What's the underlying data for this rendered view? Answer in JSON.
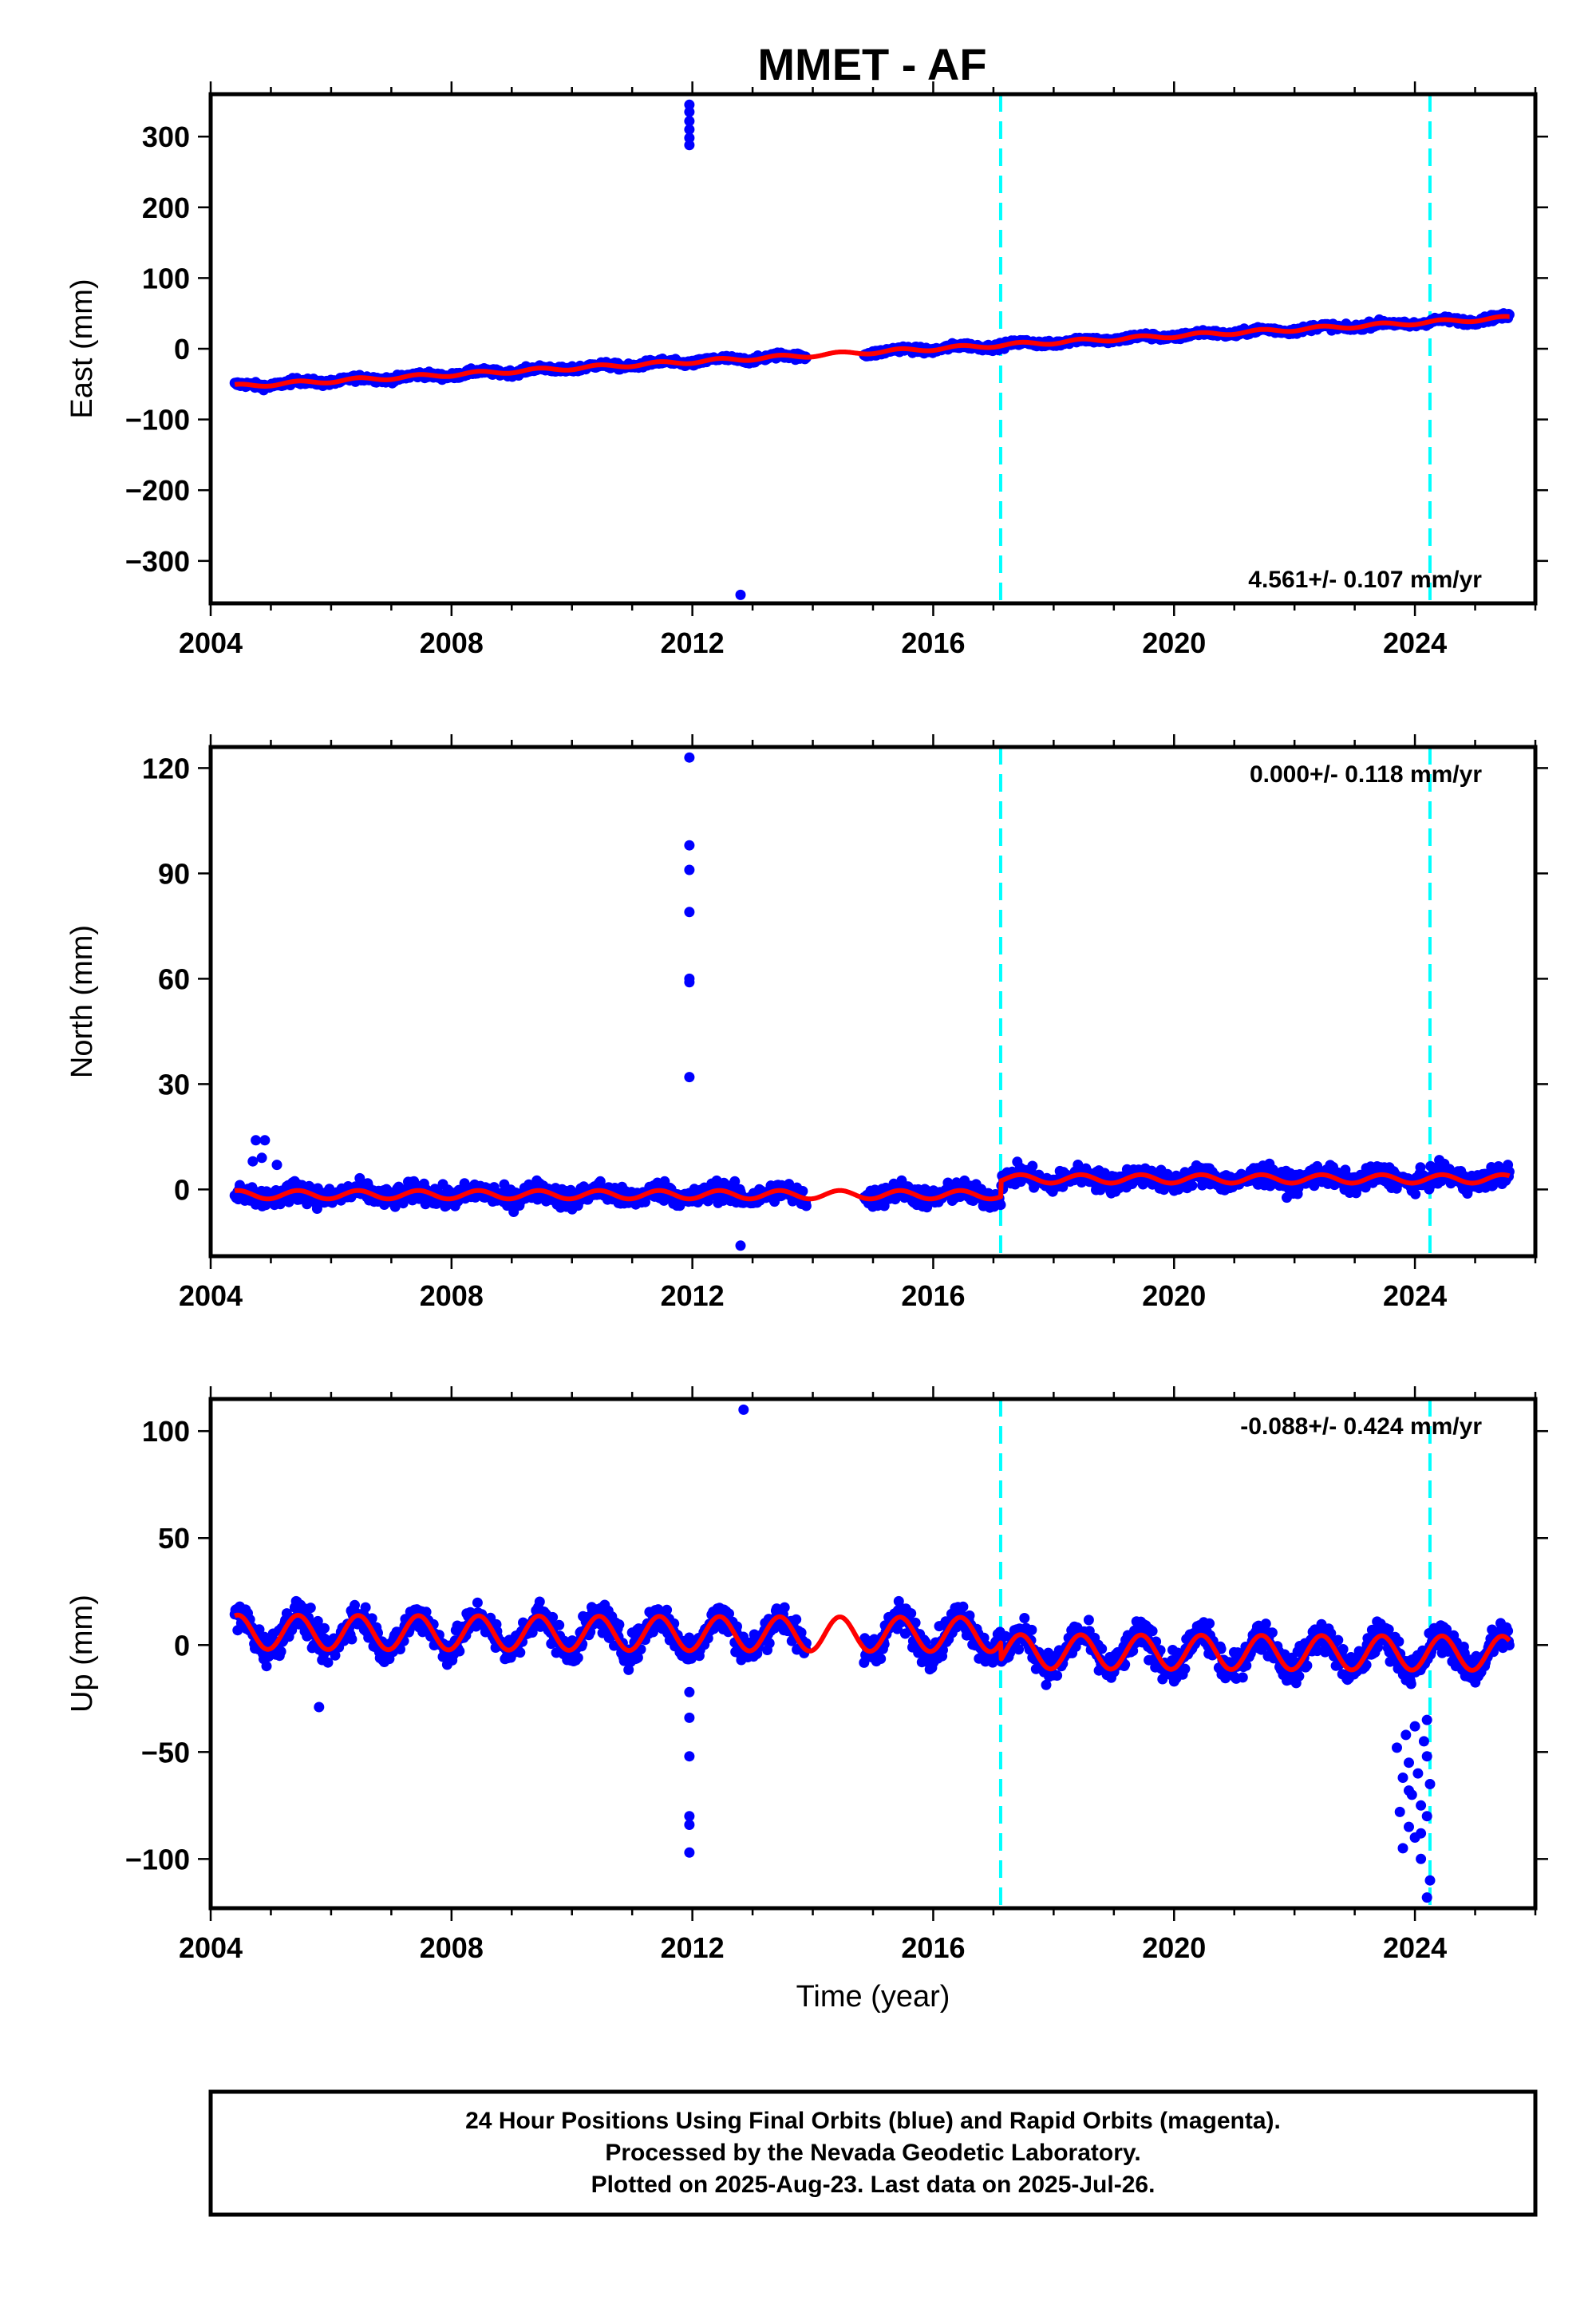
{
  "chart_data": {
    "type": "scatter",
    "title": "MMET - AF",
    "xlabel": "Time (year)",
    "xlim": [
      2004.0,
      2026.0
    ],
    "x_ticks": [
      2004,
      2008,
      2012,
      2016,
      2020,
      2024
    ],
    "x_tick_labels": [
      "2004",
      "2008",
      "2012",
      "2016",
      "2020",
      "2024"
    ],
    "data_start": 2004.4,
    "data_end": 2025.57,
    "gap": [
      2013.9,
      2014.85
    ],
    "steps": [
      2017.12,
      2024.25
    ],
    "colors": {
      "data": "#0000ff",
      "model": "#ff0000",
      "steps": "#00ffff",
      "frame": "#000000"
    },
    "grid": false,
    "panels": [
      {
        "name": "east",
        "ylabel": "East (mm)",
        "ylim": [
          -360,
          360
        ],
        "y_ticks": [
          300,
          200,
          100,
          0,
          -100,
          -200,
          -300
        ],
        "y_tick_labels": [
          "300",
          "200",
          "100",
          "0",
          "−100",
          "−200",
          "−300"
        ],
        "rate_text": "4.561+/- 0.107 mm/yr",
        "rate_position": "bottom-right",
        "trend_mm_per_yr": 4.561,
        "value_at_2016": 0.0,
        "annual_amplitude": 2.5,
        "noise": 3.0,
        "outliers": [
          [
            2011.95,
            345
          ],
          [
            2011.95,
            335
          ],
          [
            2011.95,
            322
          ],
          [
            2011.95,
            310
          ],
          [
            2011.95,
            298
          ],
          [
            2011.95,
            288
          ],
          [
            2012.8,
            -348
          ]
        ]
      },
      {
        "name": "north",
        "ylabel": "North (mm)",
        "ylim": [
          -19,
          126
        ],
        "y_ticks": [
          120,
          90,
          60,
          30,
          0
        ],
        "y_tick_labels": [
          "120",
          "90",
          "60",
          "30",
          "0"
        ],
        "rate_text": "0.000+/- 0.118 mm/yr",
        "rate_position": "top-right",
        "trend_mm_per_yr": 0.0,
        "pre_step_offset": -1.5,
        "post_step_offset": 3.0,
        "annual_amplitude": 1.2,
        "noise": 2.0,
        "outliers": [
          [
            2011.95,
            123
          ],
          [
            2011.95,
            98
          ],
          [
            2011.95,
            91
          ],
          [
            2011.95,
            79
          ],
          [
            2011.95,
            60
          ],
          [
            2011.95,
            59
          ],
          [
            2011.95,
            32
          ],
          [
            2012.8,
            -16
          ],
          [
            2004.75,
            14
          ],
          [
            2004.9,
            14
          ],
          [
            2004.85,
            9
          ],
          [
            2004.7,
            8
          ],
          [
            2005.1,
            7
          ]
        ]
      },
      {
        "name": "up",
        "ylabel": "Up (mm)",
        "ylim": [
          -123,
          115
        ],
        "y_ticks": [
          100,
          50,
          0,
          -50,
          -100
        ],
        "y_tick_labels": [
          "100",
          "50",
          "0",
          "−50",
          "−100"
        ],
        "rate_text": "-0.088+/- 0.424 mm/yr",
        "rate_position": "top-right",
        "trend_mm_per_yr": -0.088,
        "pre_step_offset": 5.0,
        "post_step_offset": -3.0,
        "annual_amplitude": 8.0,
        "noise": 5.0,
        "outliers": [
          [
            2005.8,
            -29
          ],
          [
            2011.95,
            -22
          ],
          [
            2011.95,
            -34
          ],
          [
            2011.95,
            -52
          ],
          [
            2011.95,
            -80
          ],
          [
            2011.95,
            -84
          ],
          [
            2011.95,
            -97
          ],
          [
            2012.85,
            110
          ],
          [
            2024.2,
            -118
          ],
          [
            2024.25,
            -110
          ],
          [
            2024.1,
            -100
          ],
          [
            2023.8,
            -95
          ],
          [
            2024.0,
            -90
          ],
          [
            2023.9,
            -85
          ],
          [
            2024.2,
            -80
          ],
          [
            2023.75,
            -78
          ],
          [
            2024.1,
            -75
          ],
          [
            2023.95,
            -70
          ],
          [
            2024.25,
            -65
          ],
          [
            2023.8,
            -62
          ],
          [
            2024.05,
            -60
          ],
          [
            2023.9,
            -55
          ],
          [
            2024.2,
            -52
          ],
          [
            2023.7,
            -48
          ],
          [
            2024.15,
            -45
          ],
          [
            2023.85,
            -42
          ],
          [
            2024.0,
            -38
          ],
          [
            2024.2,
            -35
          ],
          [
            2023.9,
            -68
          ],
          [
            2024.1,
            -88
          ]
        ]
      }
    ]
  },
  "footer": {
    "lines": [
      "24 Hour Positions Using Final Orbits (blue) and Rapid Orbits (magenta).",
      "Processed by the Nevada Geodetic Laboratory.",
      "Plotted on 2025-Aug-23. Last data on 2025-Jul-26."
    ]
  }
}
